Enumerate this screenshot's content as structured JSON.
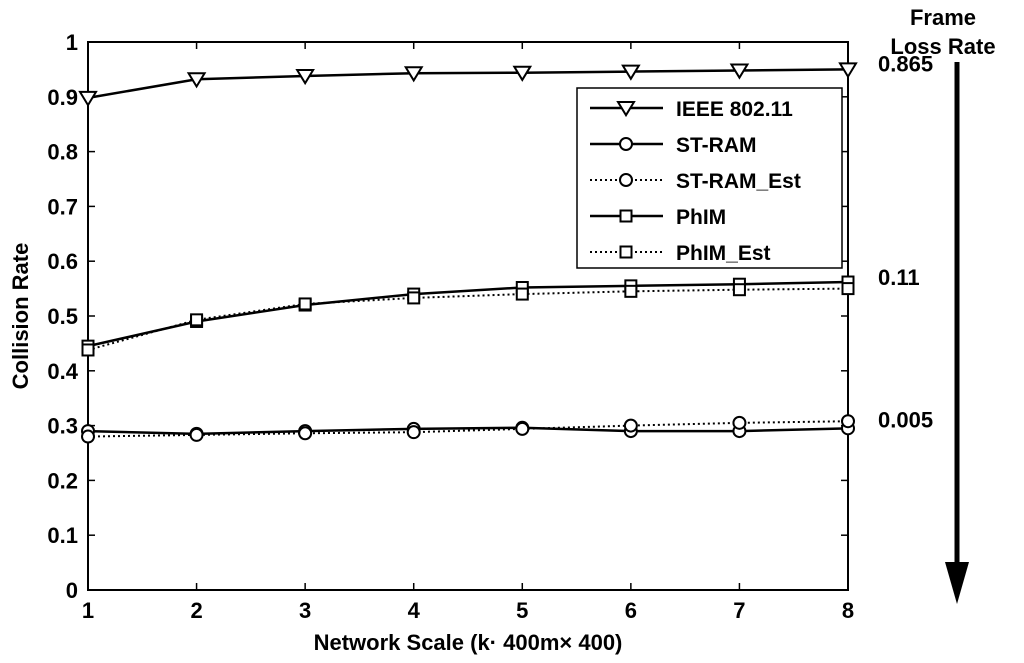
{
  "chart_data": {
    "type": "line",
    "title": "",
    "xlabel": "Network Scale (k· 400m× 400)",
    "ylabel": "Collision Rate",
    "xlim": [
      1,
      8
    ],
    "ylim": [
      0,
      1
    ],
    "x": [
      1,
      2,
      3,
      4,
      5,
      6,
      7,
      8
    ],
    "x_ticks": [
      "1",
      "2",
      "3",
      "4",
      "5",
      "6",
      "7",
      "8"
    ],
    "y_ticks": [
      "0",
      "0.1",
      "0.2",
      "0.3",
      "0.4",
      "0.5",
      "0.6",
      "0.7",
      "0.8",
      "0.9",
      "1"
    ],
    "grid": false,
    "legend_position": "top-right",
    "series": [
      {
        "name": "IEEE 802.11",
        "marker": "triangle-down",
        "line": "solid",
        "values": [
          0.898,
          0.932,
          0.938,
          0.943,
          0.944,
          0.946,
          0.948,
          0.95
        ]
      },
      {
        "name": "ST-RAM",
        "marker": "circle",
        "line": "solid",
        "values": [
          0.29,
          0.285,
          0.29,
          0.294,
          0.296,
          0.29,
          0.29,
          0.295
        ]
      },
      {
        "name": "ST-RAM_Est",
        "marker": "circle",
        "line": "dotted",
        "values": [
          0.28,
          0.283,
          0.286,
          0.288,
          0.294,
          0.3,
          0.305,
          0.308
        ]
      },
      {
        "name": "PhIM",
        "marker": "square",
        "line": "solid",
        "values": [
          0.445,
          0.49,
          0.52,
          0.54,
          0.552,
          0.555,
          0.558,
          0.562
        ]
      },
      {
        "name": "PhIM_Est",
        "marker": "square",
        "line": "dotted",
        "values": [
          0.438,
          0.493,
          0.522,
          0.533,
          0.54,
          0.545,
          0.548,
          0.55
        ]
      }
    ],
    "annotations": {
      "title": [
        "Frame",
        "Loss Rate"
      ],
      "values": [
        {
          "text": "0.865",
          "y": 0.95
        },
        {
          "text": "0.11",
          "y": 0.56
        },
        {
          "text": "0.005",
          "y": 0.3
        }
      ]
    }
  }
}
